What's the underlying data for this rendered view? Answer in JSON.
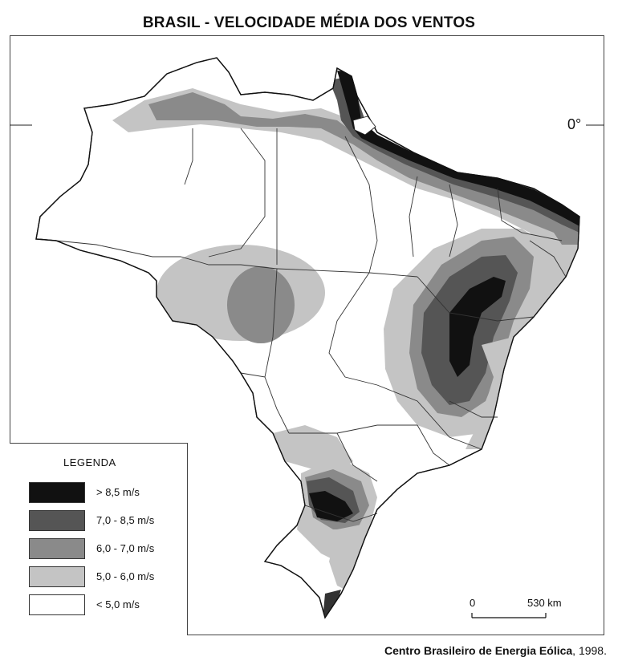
{
  "title": "BRASIL - VELOCIDADE MÉDIA DOS VENTOS",
  "equator_label": "0°",
  "legend": {
    "title": "LEGENDA",
    "items": [
      {
        "label": "> 8,5  m/s",
        "color": "#111111"
      },
      {
        "label": "7,0 - 8,5  m/s",
        "color": "#555555"
      },
      {
        "label": "6,0 - 7,0  m/s",
        "color": "#8a8a8a"
      },
      {
        "label": "5,0 - 6,0  m/s",
        "color": "#c4c4c4"
      },
      {
        "label": "< 5,0 m/s",
        "color": "#ffffff"
      }
    ]
  },
  "scale": {
    "start": "0",
    "end": "530 km"
  },
  "source": {
    "name": "Centro Brasileiro de Energia Eólica",
    "year": ", 1998."
  }
}
